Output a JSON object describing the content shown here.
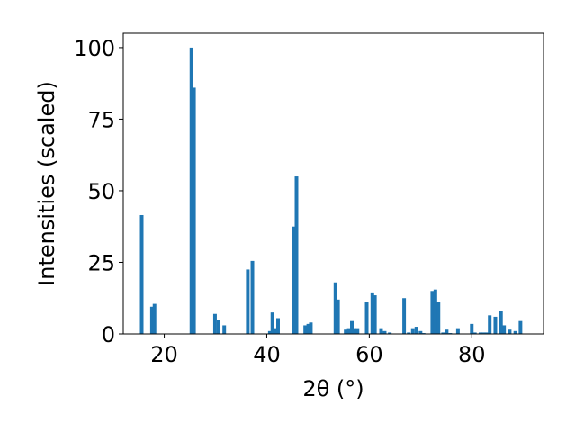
{
  "chart_data": {
    "type": "bar",
    "xlabel": "2θ (°)",
    "ylabel": "Intensities (scaled)",
    "xlim": [
      12,
      94
    ],
    "ylim": [
      0,
      105
    ],
    "x_ticks": [
      "20",
      "40",
      "60",
      "80"
    ],
    "x_tick_values": [
      20,
      40,
      60,
      80
    ],
    "y_ticks": [
      "0",
      "25",
      "50",
      "75",
      "100"
    ],
    "y_tick_values": [
      0,
      25,
      50,
      75,
      100
    ],
    "bar_color": "#1f77b4",
    "bar_width": 0.7,
    "series": [
      {
        "x": [
          15.6,
          17.6,
          18.1,
          25.3,
          25.8,
          29.9,
          30.6,
          31.7,
          36.3,
          37.2,
          40.6,
          41.1,
          41.6,
          42.2,
          45.3,
          45.8,
          47.5,
          48.1,
          48.6,
          53.4,
          53.9,
          55.4,
          56.0,
          56.6,
          57.1,
          57.7,
          59.5,
          60.6,
          61.1,
          62.3,
          63.0,
          64.0,
          66.8,
          67.7,
          68.5,
          69.2,
          70.0,
          70.6,
          72.3,
          72.9,
          73.5,
          74.4,
          75.1,
          75.8,
          77.3,
          80.0,
          80.6,
          81.7,
          82.3,
          82.9,
          83.5,
          84.6,
          85.7,
          86.3,
          87.4,
          88.5,
          89.5
        ],
        "values": [
          41.5,
          9.5,
          10.5,
          100.0,
          86.0,
          7.0,
          5.0,
          3.0,
          22.5,
          25.5,
          1.0,
          7.5,
          2.0,
          5.5,
          37.5,
          55.0,
          3.0,
          3.5,
          4.0,
          18.0,
          12.0,
          1.5,
          2.0,
          4.5,
          2.0,
          2.0,
          11.0,
          14.5,
          13.5,
          2.0,
          1.0,
          0.5,
          12.5,
          0.5,
          2.0,
          2.5,
          1.0,
          0.3,
          15.0,
          15.5,
          11.0,
          0.5,
          1.5,
          0.3,
          2.0,
          3.5,
          0.5,
          0.5,
          0.5,
          0.5,
          6.5,
          6.0,
          8.0,
          3.0,
          1.5,
          1.0,
          4.5
        ]
      }
    ]
  }
}
